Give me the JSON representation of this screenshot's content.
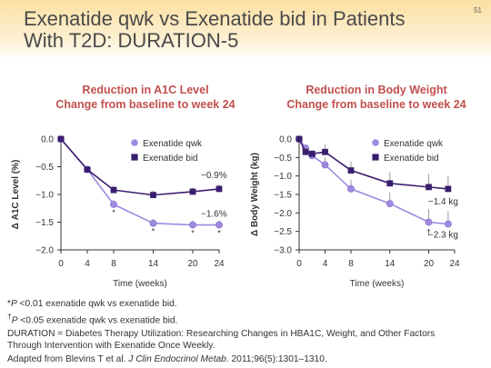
{
  "slide": {
    "title_line1": "Exenatide qwk vs Exenatide bid in Patients",
    "title_line2": "With T2D: DURATION-5",
    "number": "51",
    "accent_color": "#c0504d",
    "band_color": "#fbe0a2"
  },
  "chart_data": [
    {
      "type": "line",
      "title_line1": "Reduction in A1C Level",
      "title_line2": "Change from baseline to week 24",
      "xlabel": "Time (weeks)",
      "ylabel": "Δ A1C Level (%)",
      "xlim": [
        0,
        24
      ],
      "ylim": [
        -2.0,
        0.0
      ],
      "xticks": [
        0,
        4,
        8,
        14,
        20,
        24
      ],
      "yticks": [
        "0.0",
        "−0.5",
        "−1.0",
        "−1.5",
        "−2.0"
      ],
      "ytick_values": [
        0.0,
        -0.5,
        -1.0,
        -1.5,
        -2.0
      ],
      "grid": false,
      "legend_position": "top-right",
      "series": [
        {
          "name": "Exenatide qwk",
          "color": "#a08ae0",
          "marker": "circle",
          "x": [
            0,
            4,
            8,
            14,
            20,
            24
          ],
          "y": [
            0.0,
            -0.55,
            -1.18,
            -1.52,
            -1.55,
            -1.55
          ],
          "error": [
            0,
            0,
            0.08,
            0.08,
            0.08,
            0.08
          ],
          "end_label": "−1.6%",
          "significance_x": [
            8,
            14,
            20,
            24
          ],
          "significance_mark": "*"
        },
        {
          "name": "Exenatide bid",
          "color": "#3a1e6e",
          "marker": "square",
          "x": [
            0,
            4,
            8,
            14,
            20,
            24
          ],
          "y": [
            0.0,
            -0.55,
            -0.92,
            -1.01,
            -0.95,
            -0.9
          ],
          "error": [
            0,
            0,
            0.08,
            0.08,
            0.08,
            0.08
          ],
          "end_label": "−0.9%"
        }
      ]
    },
    {
      "type": "line",
      "title_line1": "Reduction in Body Weight",
      "title_line2": "Change from baseline to week 24",
      "xlabel": "Time (weeks)",
      "ylabel": "Δ Body Weight (kg)",
      "xlim": [
        0,
        24
      ],
      "ylim": [
        -3.0,
        0.0
      ],
      "xticks": [
        0,
        4,
        8,
        14,
        20,
        24
      ],
      "yticks": [
        "0.0",
        "−0.5",
        "−1.0",
        "−1.5",
        "−2.0",
        "−2.5",
        "−3.0"
      ],
      "ytick_values": [
        0.0,
        -0.5,
        -1.0,
        -1.5,
        -2.0,
        -2.5,
        -3.0
      ],
      "grid": false,
      "legend_position": "top-right",
      "series": [
        {
          "name": "Exenatide qwk",
          "color": "#a08ae0",
          "marker": "circle",
          "x": [
            0,
            1,
            2,
            4,
            8,
            14,
            20,
            23
          ],
          "y": [
            0.0,
            -0.25,
            -0.45,
            -0.7,
            -1.35,
            -1.75,
            -2.25,
            -2.3
          ],
          "error": [
            0,
            0.1,
            0.1,
            0.2,
            0.25,
            0.3,
            0.35,
            0.35
          ],
          "end_label": "−2.3 kg",
          "significance_x": [
            20
          ],
          "significance_mark": "†"
        },
        {
          "name": "Exenatide bid",
          "color": "#3a1e6e",
          "marker": "square",
          "x": [
            0,
            1,
            2,
            4,
            8,
            14,
            20,
            23
          ],
          "y": [
            0.0,
            -0.35,
            -0.4,
            -0.35,
            -0.85,
            -1.2,
            -1.3,
            -1.35
          ],
          "error": [
            0,
            0.1,
            0.1,
            0.2,
            0.25,
            0.3,
            0.35,
            0.35
          ],
          "end_label": "−1.4 kg"
        }
      ]
    }
  ],
  "footnotes": {
    "sig1_mark": "*",
    "sig1_p": "P",
    "sig1_text": " <0.01 exenatide qwk vs exenatide bid.",
    "sig2_mark": "†",
    "sig2_p": "P",
    "sig2_text": " <0.05 exenatide qwk vs exenatide bid.",
    "duration_line1": "DURATION = Diabetes Therapy Utilization: Researching Changes in HBA1C, Weight, and Other Factors",
    "duration_line2": "Through Intervention with Exenatide Once Weekly.",
    "source_prefix": "Adapted from Blevins T et al. ",
    "source_journal": "J Clin Endocrinol Metab",
    "source_suffix": ". 2011;96(5):1301–1310."
  }
}
